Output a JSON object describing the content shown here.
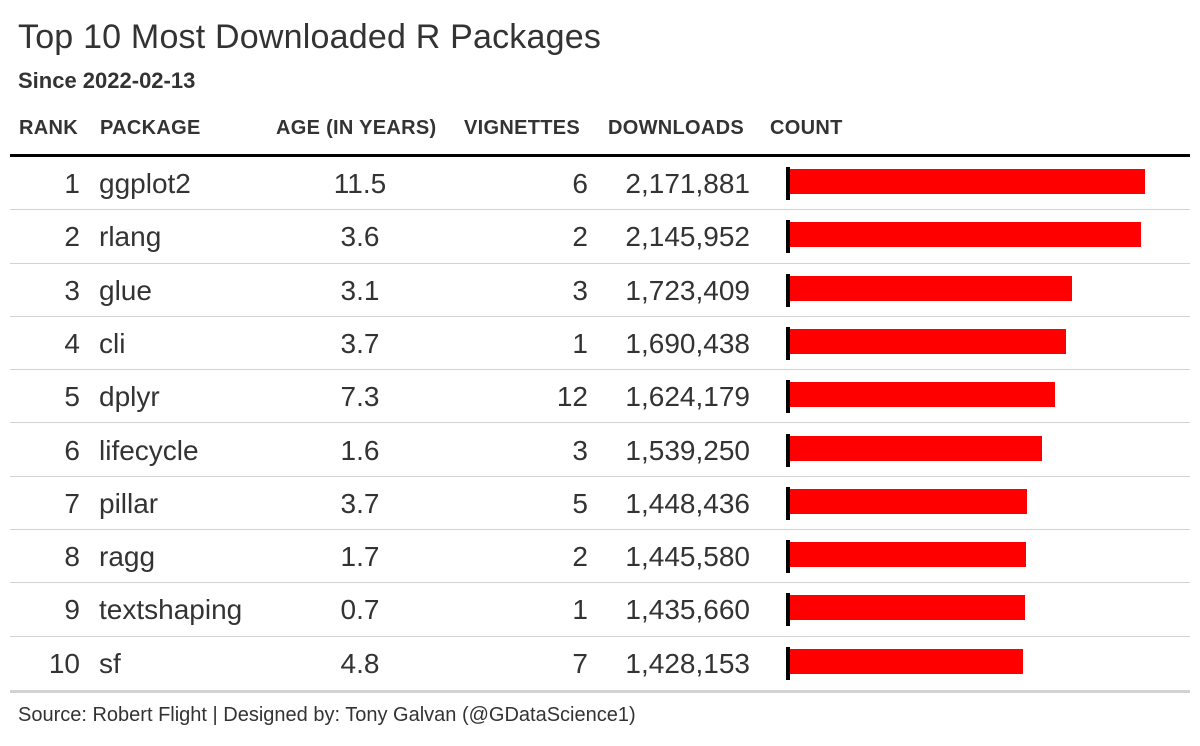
{
  "title": "Top 10 Most Downloaded R Packages",
  "subtitle": "Since 2022-02-13",
  "columns": {
    "rank": "RANK",
    "package": "PACKAGE",
    "age": "AGE (IN YEARS)",
    "vignettes": "VIGNETTES",
    "downloads": "DOWNLOADS",
    "count": "COUNT"
  },
  "source": "Source: Robert Flight | Designed by: Tony Galvan (@GDataScience1)",
  "colors": {
    "bar": "#ff0000",
    "axis": "#000000",
    "text": "#333333"
  },
  "chart_data": {
    "type": "table",
    "bar_series": "downloads",
    "xlim": [
      0,
      2171881
    ],
    "rows": [
      {
        "rank": "1",
        "package": "ggplot2",
        "age": "11.5",
        "vignettes": "6",
        "downloads": "2,171,881",
        "count": 2171881
      },
      {
        "rank": "2",
        "package": "rlang",
        "age": "3.6",
        "vignettes": "2",
        "downloads": "2,145,952",
        "count": 2145952
      },
      {
        "rank": "3",
        "package": "glue",
        "age": "3.1",
        "vignettes": "3",
        "downloads": "1,723,409",
        "count": 1723409
      },
      {
        "rank": "4",
        "package": "cli",
        "age": "3.7",
        "vignettes": "1",
        "downloads": "1,690,438",
        "count": 1690438
      },
      {
        "rank": "5",
        "package": "dplyr",
        "age": "7.3",
        "vignettes": "12",
        "downloads": "1,624,179",
        "count": 1624179
      },
      {
        "rank": "6",
        "package": "lifecycle",
        "age": "1.6",
        "vignettes": "3",
        "downloads": "1,539,250",
        "count": 1539250
      },
      {
        "rank": "7",
        "package": "pillar",
        "age": "3.7",
        "vignettes": "5",
        "downloads": "1,448,436",
        "count": 1448436
      },
      {
        "rank": "8",
        "package": "ragg",
        "age": "1.7",
        "vignettes": "2",
        "downloads": "1,445,580",
        "count": 1445580
      },
      {
        "rank": "9",
        "package": "textshaping",
        "age": "0.7",
        "vignettes": "1",
        "downloads": "1,435,660",
        "count": 1435660
      },
      {
        "rank": "10",
        "package": "sf",
        "age": "4.8",
        "vignettes": "7",
        "downloads": "1,428,153",
        "count": 1428153
      }
    ]
  }
}
